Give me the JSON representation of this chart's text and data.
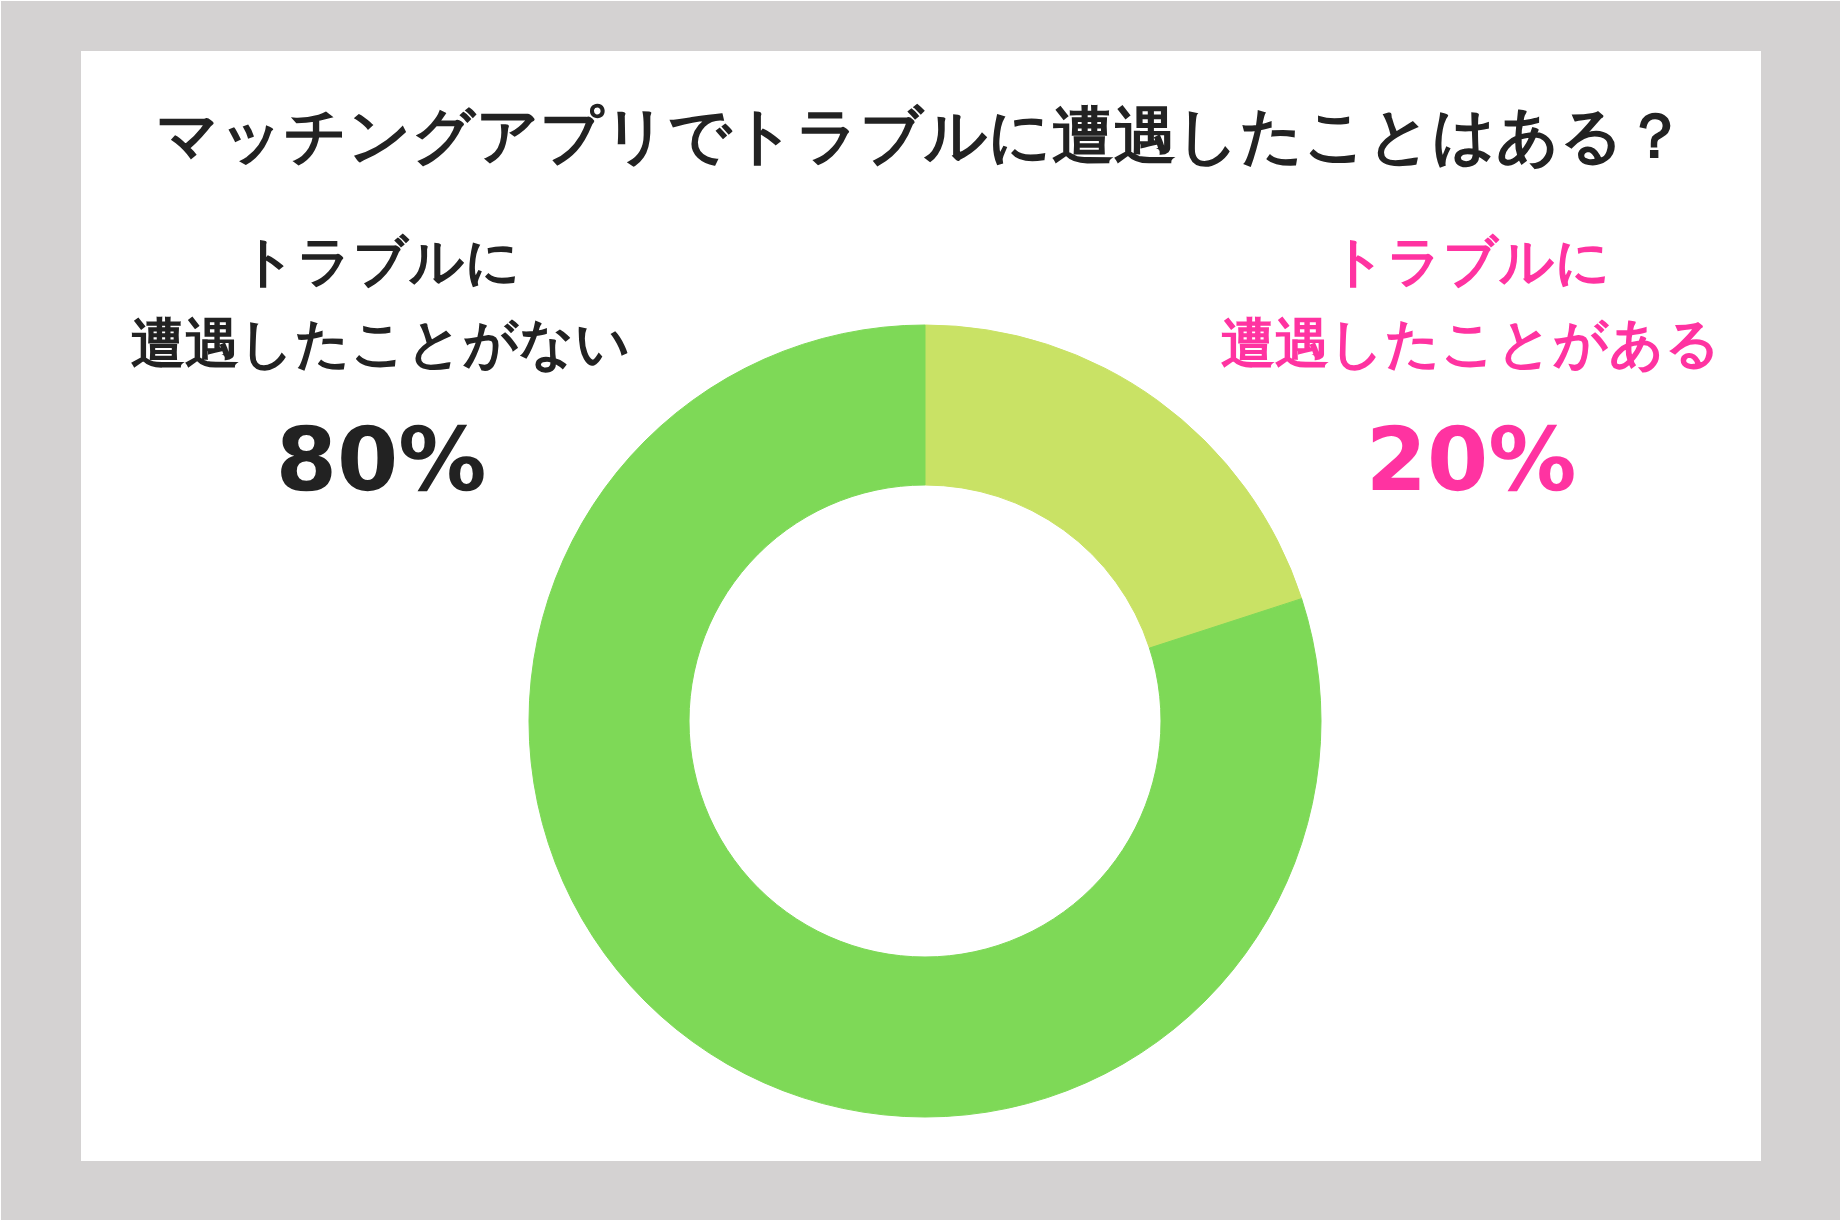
{
  "chart_data": {
    "type": "donut",
    "title": "マッチングアプリでトラブルに遭遇したことはある？",
    "categories": [
      "トラブルに遭遇したことがある",
      "トラブルに遭遇したことがない"
    ],
    "values": [
      20,
      80
    ],
    "colors": [
      "#c9e265",
      "#7ed957"
    ],
    "value_labels": [
      "20%",
      "80%"
    ]
  }
}
